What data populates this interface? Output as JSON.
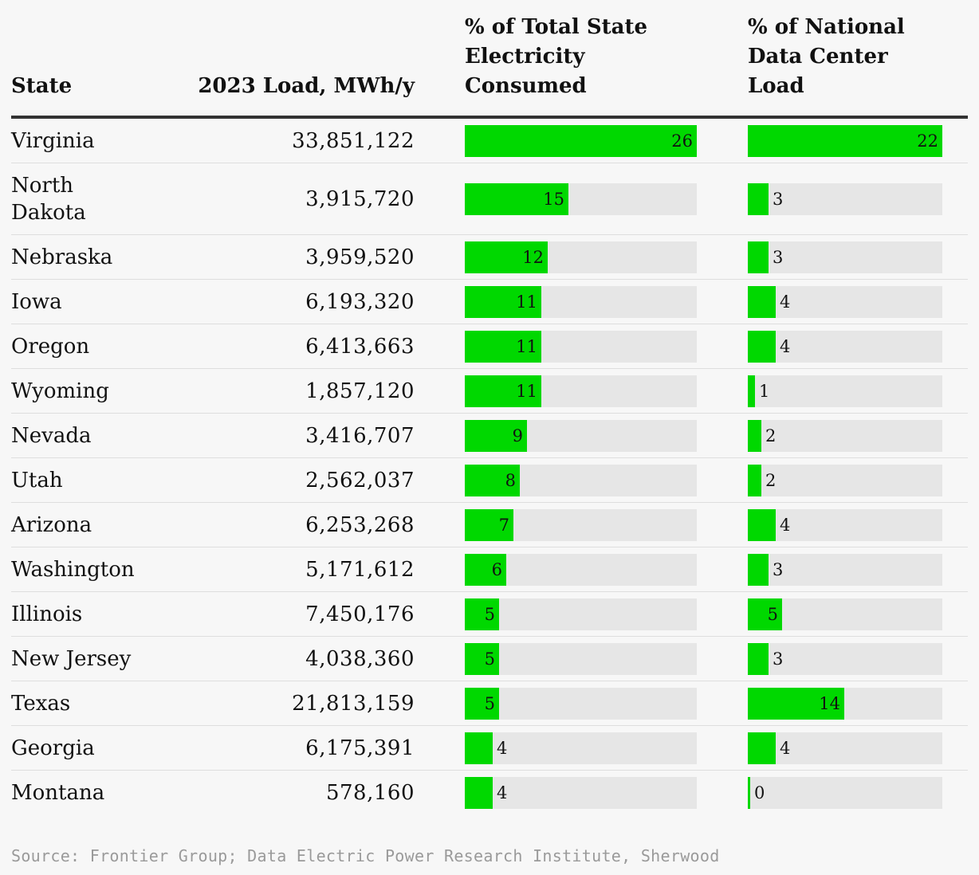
{
  "chart_data": {
    "type": "table",
    "columns": [
      "State",
      "2023 Load, MWh/y",
      "% of Total State Electricity Consumed",
      "% of National Data Center Load"
    ],
    "header_lines": {
      "state": [
        "State"
      ],
      "load": [
        "2023 Load, MWh/y"
      ],
      "pct_state": [
        "% of Total State",
        "Electricity",
        "Consumed"
      ],
      "pct_national": [
        "% of National",
        "Data Center",
        "Load"
      ]
    },
    "bar_max": {
      "pct_state": 26,
      "pct_national": 22
    },
    "bar_color": "#00d800",
    "track_color": "#e6e6e6",
    "rows": [
      {
        "state": "Virginia",
        "load": "33,851,122",
        "pct_state": 26,
        "pct_national": 22
      },
      {
        "state": "North Dakota",
        "load": "3,915,720",
        "pct_state": 15,
        "pct_national": 3
      },
      {
        "state": "Nebraska",
        "load": "3,959,520",
        "pct_state": 12,
        "pct_national": 3
      },
      {
        "state": "Iowa",
        "load": "6,193,320",
        "pct_state": 11,
        "pct_national": 4
      },
      {
        "state": "Oregon",
        "load": "6,413,663",
        "pct_state": 11,
        "pct_national": 4
      },
      {
        "state": "Wyoming",
        "load": "1,857,120",
        "pct_state": 11,
        "pct_national": 1
      },
      {
        "state": "Nevada",
        "load": "3,416,707",
        "pct_state": 9,
        "pct_national": 2
      },
      {
        "state": "Utah",
        "load": "2,562,037",
        "pct_state": 8,
        "pct_national": 2
      },
      {
        "state": "Arizona",
        "load": "6,253,268",
        "pct_state": 7,
        "pct_national": 4
      },
      {
        "state": "Washington",
        "load": "5,171,612",
        "pct_state": 6,
        "pct_national": 3
      },
      {
        "state": "Illinois",
        "load": "7,450,176",
        "pct_state": 5,
        "pct_national": 5
      },
      {
        "state": "New Jersey",
        "load": "4,038,360",
        "pct_state": 5,
        "pct_national": 3
      },
      {
        "state": "Texas",
        "load": "21,813,159",
        "pct_state": 5,
        "pct_national": 14
      },
      {
        "state": "Georgia",
        "load": "6,175,391",
        "pct_state": 4,
        "pct_national": 4
      },
      {
        "state": "Montana",
        "load": "578,160",
        "pct_state": 4,
        "pct_national": 0
      }
    ]
  },
  "source": "Source: Frontier Group; Data Electric Power Research Institute, Sherwood"
}
